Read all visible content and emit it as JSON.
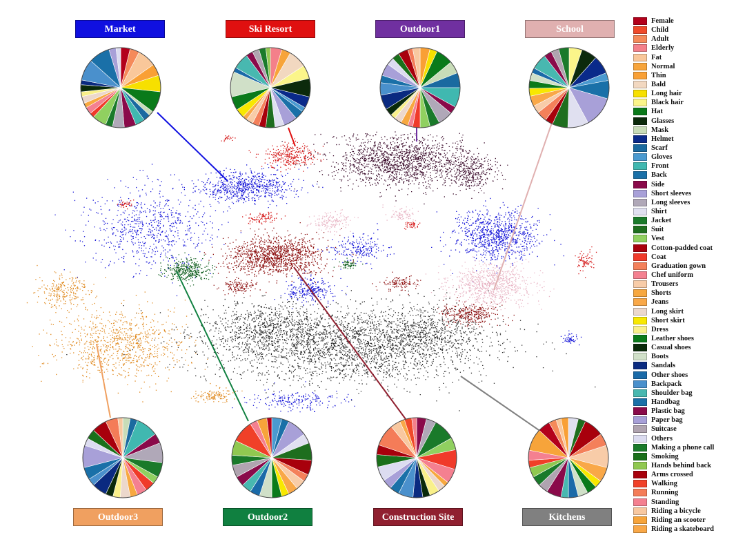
{
  "chart_data": {
    "type": "scatter",
    "description_title": "",
    "legend": {
      "placement": "right",
      "entries": [
        {
          "label": "Female",
          "color": "#b3001b"
        },
        {
          "label": "Child",
          "color": "#f04a2a"
        },
        {
          "label": "Adult",
          "color": "#f58a5a"
        },
        {
          "label": "Elderly",
          "color": "#f4808a"
        },
        {
          "label": "Fat",
          "color": "#f9c79a"
        },
        {
          "label": "Normal",
          "color": "#f7a43a"
        },
        {
          "label": "Thin",
          "color": "#f9a035"
        },
        {
          "label": "Bald",
          "color": "#f2d8c0"
        },
        {
          "label": "Long hair",
          "color": "#f7e000"
        },
        {
          "label": "Black hair",
          "color": "#fbf58a"
        },
        {
          "label": "Hat",
          "color": "#0a7a1a"
        },
        {
          "label": "Glasses",
          "color": "#0c2a0c"
        },
        {
          "label": "Mask",
          "color": "#c8dcb8"
        },
        {
          "label": "Helmet",
          "color": "#0a2a8a"
        },
        {
          "label": "Scarf",
          "color": "#1a6aa0"
        },
        {
          "label": "Gloves",
          "color": "#4a9ad0"
        },
        {
          "label": "Front",
          "color": "#40b8b0"
        },
        {
          "label": "Back",
          "color": "#1a70a8"
        },
        {
          "label": "Side",
          "color": "#8a0a4a"
        },
        {
          "label": "Short sleeves",
          "color": "#a8a0d8"
        },
        {
          "label": "Long sleeves",
          "color": "#b0a8b8"
        },
        {
          "label": "Shirt",
          "color": "#e0e0f0"
        },
        {
          "label": "Jacket",
          "color": "#1a7a2a"
        },
        {
          "label": "Suit",
          "color": "#1e6e1e"
        },
        {
          "label": "Vest",
          "color": "#90d060"
        },
        {
          "label": "Cotton-padded coat",
          "color": "#a8000c"
        },
        {
          "label": "Coat",
          "color": "#f03a2a"
        },
        {
          "label": "Graduation gown",
          "color": "#f4805a"
        },
        {
          "label": "Chef uniform",
          "color": "#f48090"
        },
        {
          "label": "Trousers",
          "color": "#f8cca8"
        },
        {
          "label": "Shorts",
          "color": "#f7a840"
        },
        {
          "label": "Jeans",
          "color": "#f9a848"
        },
        {
          "label": "Long skirt",
          "color": "#ecd8cc"
        },
        {
          "label": "Short skirt",
          "color": "#f8e800"
        },
        {
          "label": "Dress",
          "color": "#f9f08a"
        },
        {
          "label": "Leather shoes",
          "color": "#0a7a1a"
        },
        {
          "label": "Casual shoes",
          "color": "#0a2a0a"
        },
        {
          "label": "Boots",
          "color": "#d0e0c8"
        },
        {
          "label": "Sandals",
          "color": "#0a2a80"
        },
        {
          "label": "Other shoes",
          "color": "#1a6aa8"
        },
        {
          "label": "Backpack",
          "color": "#4a90cc"
        },
        {
          "label": "Shoulder bag",
          "color": "#48b8b0"
        },
        {
          "label": "Handbag",
          "color": "#1a70a8"
        },
        {
          "label": "Plastic bag",
          "color": "#8a0a4a"
        },
        {
          "label": "Paper bag",
          "color": "#a8a0d8"
        },
        {
          "label": "Suitcase",
          "color": "#b0a4b0"
        },
        {
          "label": "Others",
          "color": "#dcdcf0"
        },
        {
          "label": "Making a phone call",
          "color": "#1a7a2a"
        },
        {
          "label": "Smoking",
          "color": "#1a701a"
        },
        {
          "label": "Hands behind back",
          "color": "#90c850"
        },
        {
          "label": "Arms crossed",
          "color": "#a8000c"
        },
        {
          "label": "Walking",
          "color": "#f04028"
        },
        {
          "label": "Running",
          "color": "#f47c58"
        },
        {
          "label": "Standing",
          "color": "#f48090"
        },
        {
          "label": "Riding a bicycle",
          "color": "#f8c8a0"
        },
        {
          "label": "Riding an scooter",
          "color": "#f7a43a"
        },
        {
          "label": "Riding a skateboard",
          "color": "#f9a848"
        }
      ]
    },
    "scenes": [
      {
        "name": "Market",
        "label_color": "#1010e0",
        "dot_color": "#1414d8",
        "pie_values": [
          4,
          4,
          8,
          5,
          7,
          9,
          2,
          3,
          4,
          5,
          5,
          3,
          6,
          2,
          3,
          2,
          3,
          2,
          3,
          2,
          9,
          9,
          3,
          2
        ]
      },
      {
        "name": "Ski Resort",
        "label_color": "#e01010",
        "dot_color": "#d41414",
        "pie_values": [
          5,
          4,
          8,
          6,
          8,
          5,
          2,
          4,
          6,
          4,
          4,
          3,
          3,
          3,
          2,
          4,
          6,
          11,
          2,
          7,
          3,
          3,
          3,
          2
        ]
      },
      {
        "name": "Outdoor1",
        "label_color": "#7030a0",
        "dot_color": "#3a0a2a",
        "pie_values": [
          4,
          3,
          7,
          5,
          6,
          8,
          3,
          6,
          4,
          4,
          3,
          2,
          3,
          3,
          2,
          3,
          6,
          5,
          3,
          5,
          3,
          3,
          4,
          2,
          3
        ]
      },
      {
        "name": "School",
        "label_color": "#e0b0b0",
        "dot_color": "#e8b4c4",
        "pie_values": [
          5,
          6,
          7,
          3,
          7,
          12,
          8,
          6,
          3,
          4,
          3,
          4,
          3,
          3,
          3,
          2,
          6,
          3,
          3,
          4
        ]
      },
      {
        "name": "Outdoor3",
        "label_color": "#f0a060",
        "dot_color": "#e08a20",
        "pie_values": [
          3,
          3,
          9,
          4,
          8,
          6,
          3,
          4,
          4,
          3,
          4,
          3,
          3,
          6,
          3,
          5,
          9,
          3,
          4,
          6,
          5,
          2
        ]
      },
      {
        "name": "Outdoor2",
        "label_color": "#108040",
        "dot_color": "#0a5a1a",
        "pie_values": [
          4,
          3,
          8,
          4,
          7,
          6,
          3,
          4,
          4,
          3,
          4,
          5,
          4,
          4,
          4,
          5,
          4,
          6,
          9,
          3,
          4,
          2
        ]
      },
      {
        "name": "Construction Site",
        "label_color": "#902030",
        "dot_color": "#8a0a0a",
        "pie_values": [
          4,
          4,
          9,
          5,
          8,
          6,
          2,
          3,
          4,
          3,
          4,
          6,
          4,
          4,
          6,
          5,
          4,
          9,
          4,
          2,
          3,
          2
        ]
      },
      {
        "name": "Kitchens",
        "label_color": "#808080",
        "dot_color": "#2a2a2a",
        "pie_values": [
          4,
          3,
          8,
          5,
          9,
          6,
          3,
          4,
          4,
          4,
          3,
          6,
          4,
          4,
          4,
          3,
          4,
          9,
          5,
          3,
          2,
          3
        ]
      }
    ]
  }
}
